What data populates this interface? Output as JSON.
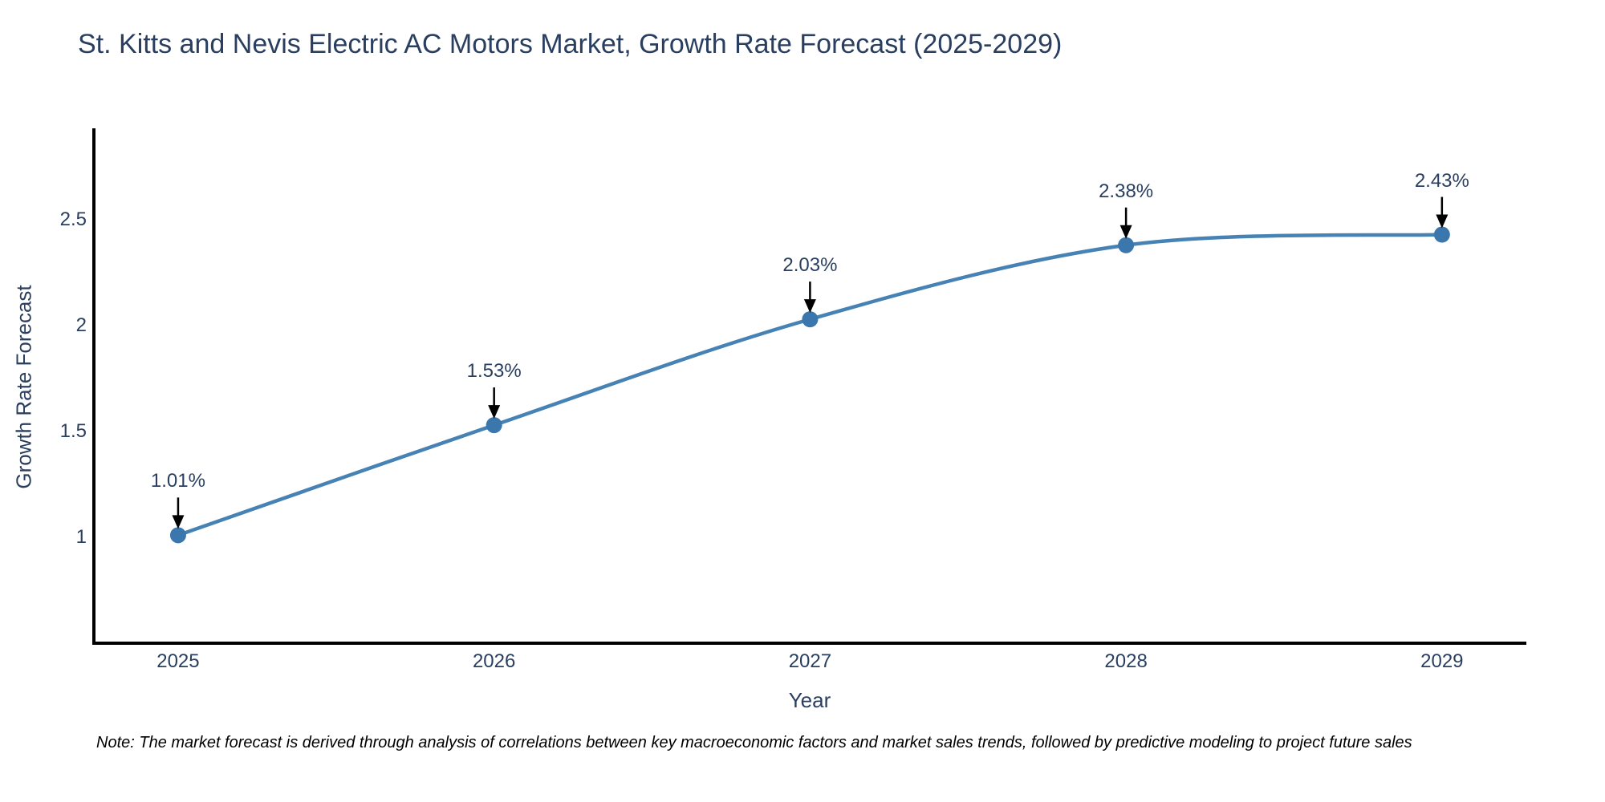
{
  "header": {
    "title": "St. Kitts and Nevis Electric AC Motors Market, Growth Rate Forecast (2025-2029)"
  },
  "footnote": "Note: The market forecast is derived through analysis of correlations between key macroeconomic factors and market sales trends, followed by predictive modeling to project future sales",
  "chart_data": {
    "type": "line",
    "title": "St. Kitts and Nevis Electric AC Motors Market, Growth Rate Forecast (2025-2029)",
    "xlabel": "Year",
    "ylabel": "Growth Rate Forecast",
    "x": [
      2025,
      2026,
      2027,
      2028,
      2029
    ],
    "series": [
      {
        "name": "Growth Rate Forecast",
        "values": [
          1.01,
          1.53,
          2.03,
          2.38,
          2.43
        ]
      }
    ],
    "point_labels": [
      "1.01%",
      "1.53%",
      "2.03%",
      "2.38%",
      "2.43%"
    ],
    "xtick_labels": [
      "2025",
      "2026",
      "2027",
      "2028",
      "2029"
    ],
    "ytick_values": [
      1,
      1.5,
      2,
      2.5
    ],
    "ytick_labels": [
      "1",
      "1.5",
      "2",
      "2.5"
    ],
    "xlim": [
      2024.736,
      2029.262
    ],
    "ylim": [
      0.5075,
      2.9321
    ],
    "grid": false,
    "legend_position": "none",
    "line_shape": "spline",
    "colors": {
      "line": "#4682b4",
      "marker": "#3b76ad",
      "axis": "#000000",
      "tick_text": "#2a3f5f",
      "title_text": "#2a3f5f",
      "annotation_text": "#2a3f5f",
      "arrow": "#000000"
    }
  }
}
